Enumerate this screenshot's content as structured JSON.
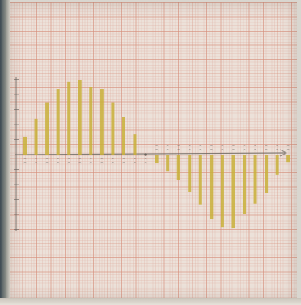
{
  "scene": {
    "description_colors": {
      "paper": "#ece1d9",
      "grid_major": "#d68c78",
      "bar": "#c9b03a",
      "pencil": "#6b6660"
    }
  },
  "chart_data": {
    "type": "bar",
    "style": "hand-drawn sine-like bars on graph paper",
    "values": [
      2.4,
      4.8,
      7.0,
      8.8,
      9.8,
      10.0,
      9.1,
      8.8,
      7.0,
      5.0,
      2.7,
      0,
      -1.2,
      -2.2,
      -3.4,
      -5.0,
      -6.7,
      -8.7,
      -9.8,
      -9.9,
      -8.0,
      -6.6,
      -5.2,
      -2.7,
      -1.0
    ],
    "ylim": [
      -11,
      11
    ],
    "grid": true,
    "x_label_visible": "",
    "tick_labels": ""
  }
}
